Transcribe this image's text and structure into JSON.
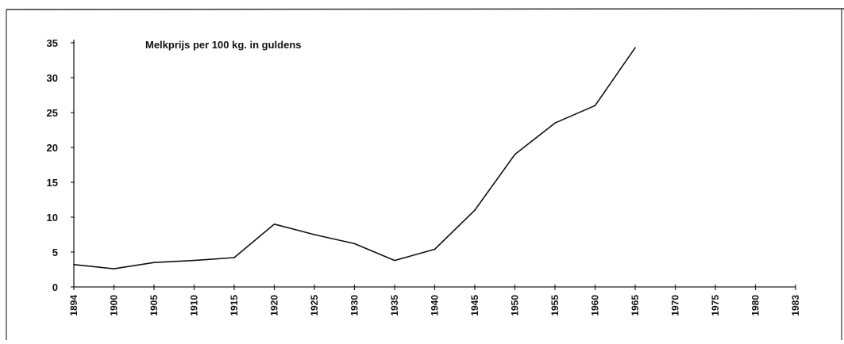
{
  "chart_data": {
    "type": "line",
    "title": "Melkprijs per 100 kg. in guldens",
    "xlabel": "",
    "ylabel": "",
    "x_ticks": [
      "1894",
      "1900",
      "1905",
      "1910",
      "1915",
      "1920",
      "1925",
      "1930",
      "1935",
      "1940",
      "1945",
      "1950",
      "1955",
      "1960",
      "1965",
      "1970",
      "1975",
      "1980",
      "1983"
    ],
    "y_ticks": [
      "0",
      "5",
      "10",
      "15",
      "20",
      "25",
      "30",
      "35"
    ],
    "ylim": [
      0,
      35
    ],
    "grid": false,
    "series": [
      {
        "x": [
          "1894",
          "1900",
          "1905",
          "1910",
          "1915",
          "1920",
          "1925",
          "1930",
          "1935",
          "1940",
          "1945",
          "1950",
          "1955",
          "1960",
          "1965"
        ],
        "values": [
          3.2,
          2.6,
          3.5,
          3.8,
          4.2,
          9.0,
          7.5,
          6.2,
          3.8,
          5.4,
          11.0,
          19.0,
          23.5,
          26.0,
          34.3
        ]
      }
    ],
    "colors": {
      "line": "#111111",
      "axis": "#222222"
    }
  }
}
